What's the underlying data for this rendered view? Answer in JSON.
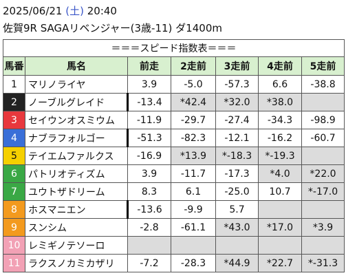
{
  "header": {
    "date": "2025/06/21",
    "weekday": "(土)",
    "time": "20:40",
    "race": "佐賀9R SAGAリベンジャー(3歳-11) ダ1400m"
  },
  "table": {
    "title": "＝＝＝スピード指数表＝＝＝",
    "columns": [
      "馬番",
      "馬名",
      "前走",
      "2走前",
      "3走前",
      "4走前",
      "5走前"
    ],
    "rows": [
      {
        "number": "1",
        "color": "#ffffff",
        "name": "マリノライヤ",
        "values": [
          "3.9",
          "-5.0",
          "-57.3",
          "6.6",
          "-38.8"
        ]
      },
      {
        "number": "2",
        "color": "#222222",
        "name": "ノーブルグレイド",
        "values": [
          "-13.4",
          "*42.4",
          "*32.0",
          "*38.0",
          null
        ]
      },
      {
        "number": "3",
        "color": "#e8383d",
        "name": "セイウンオスミウム",
        "values": [
          "-11.9",
          "-29.7",
          "-27.4",
          "-34.3",
          "-98.9"
        ]
      },
      {
        "number": "4",
        "color": "#3a6fd8",
        "name": "ナブラフォルゴー",
        "values": [
          "-51.3",
          "-82.3",
          "-12.1",
          "-16.2",
          "-60.7"
        ]
      },
      {
        "number": "5",
        "color": "#f5d000",
        "name": "テイエムファルクス",
        "values": [
          "-16.9",
          "*13.9",
          "*-18.3",
          "*-19.3",
          null
        ]
      },
      {
        "number": "6",
        "color": "#3aa845",
        "name": "パトリオティズム",
        "values": [
          "3.9",
          "-11.7",
          "-17.3",
          "*4.0",
          "*22.0"
        ]
      },
      {
        "number": "7",
        "color": "#3aa845",
        "name": "ユウトザドリーム",
        "values": [
          "8.3",
          "6.1",
          "-25.0",
          "10.7",
          "*-17.0"
        ]
      },
      {
        "number": "8",
        "color": "#f39a1e",
        "name": "ホスマニエン",
        "values": [
          "-13.6",
          "-9.9",
          "5.7",
          null,
          null
        ]
      },
      {
        "number": "9",
        "color": "#f39a1e",
        "name": "スンシム",
        "values": [
          "-2.8",
          "-61.1",
          "*43.0",
          "*17.0",
          "*3.9"
        ]
      },
      {
        "number": "10",
        "color": "#f2a1b5",
        "name": "レミギノテソーロ",
        "values": [
          null,
          null,
          null,
          null,
          null
        ]
      },
      {
        "number": "11",
        "color": "#f2a1b5",
        "name": "ラクスノカミカザリ",
        "values": [
          "-7.2",
          "-28.3",
          "*44.9",
          "*22.7",
          "*-31.3"
        ]
      }
    ]
  }
}
